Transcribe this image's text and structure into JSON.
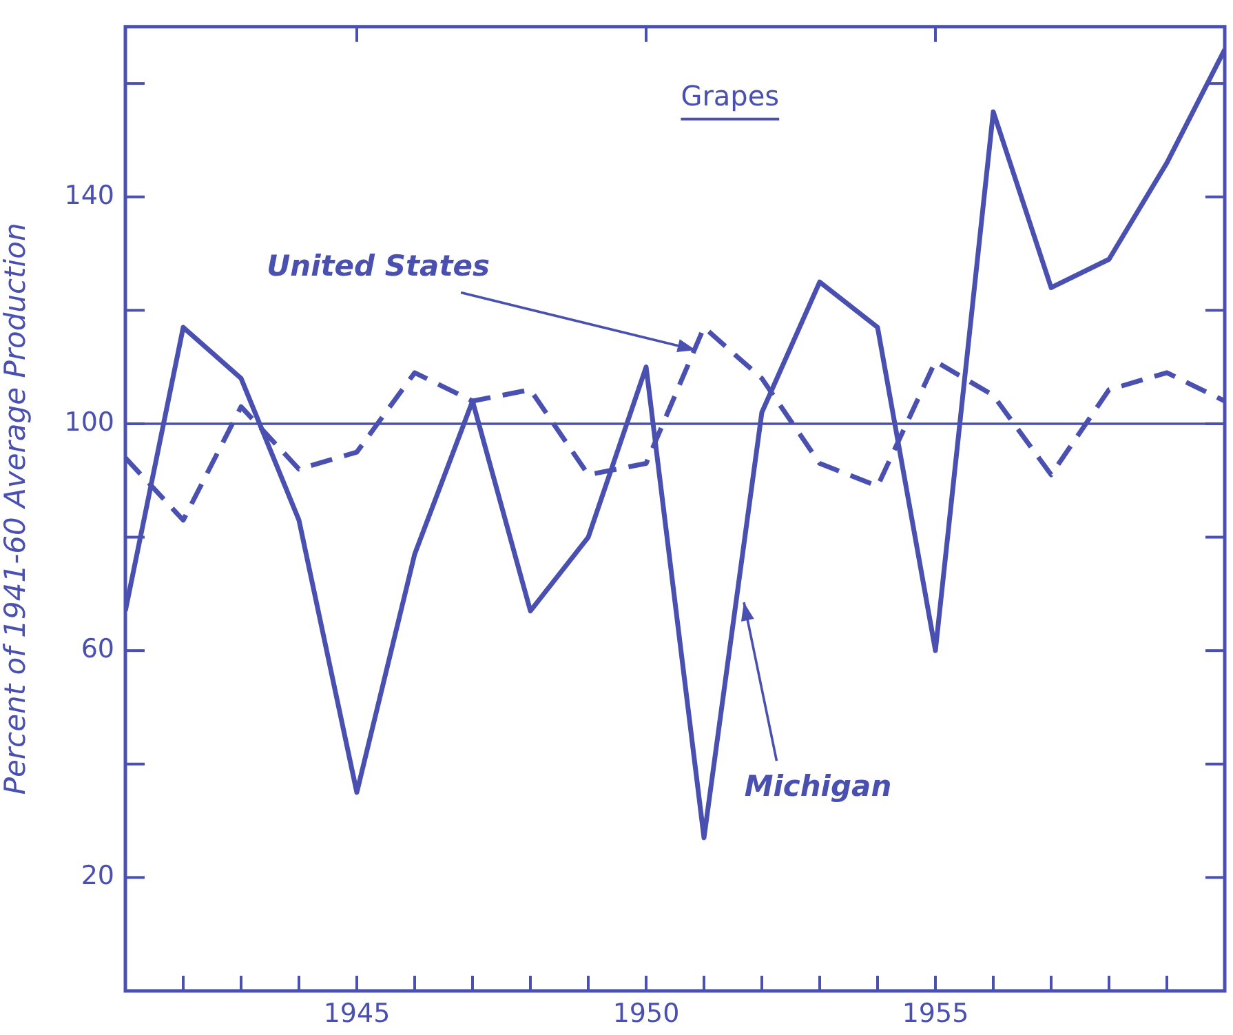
{
  "chart_data": {
    "type": "line",
    "title": "Grapes",
    "ylabel": "Percent of 1941-60 Average Production",
    "x": [
      1941,
      1942,
      1943,
      1944,
      1945,
      1946,
      1947,
      1948,
      1949,
      1950,
      1951,
      1952,
      1953,
      1954,
      1955,
      1956,
      1957,
      1958,
      1959,
      1960
    ],
    "series": [
      {
        "name": "Michigan",
        "color": "#4a50b0",
        "line_style": "solid",
        "values": [
          67,
          117,
          108,
          83,
          35,
          77,
          104,
          67,
          80,
          110,
          27,
          102,
          125,
          117,
          60,
          155,
          124,
          129,
          146,
          166
        ]
      },
      {
        "name": "United States",
        "color": "#4a50b0",
        "line_style": "dashed",
        "values": [
          94,
          83,
          103,
          92,
          95,
          109,
          104,
          106,
          91,
          93,
          117,
          108,
          93,
          89,
          111,
          105,
          91,
          106,
          109,
          104
        ]
      }
    ],
    "xlim": [
      1941,
      1960
    ],
    "xticks": [
      {
        "value": 1941,
        "label": null
      },
      {
        "value": 1942,
        "label": null
      },
      {
        "value": 1943,
        "label": null
      },
      {
        "value": 1944,
        "label": null
      },
      1945,
      {
        "value": 1946,
        "label": null
      },
      {
        "value": 1947,
        "label": null
      },
      {
        "value": 1948,
        "label": null
      },
      {
        "value": 1949,
        "label": null
      },
      1950,
      {
        "value": 1951,
        "label": null
      },
      {
        "value": 1952,
        "label": null
      },
      {
        "value": 1953,
        "label": null
      },
      {
        "value": 1954,
        "label": null
      },
      1955,
      {
        "value": 1956,
        "label": null
      },
      {
        "value": 1957,
        "label": null
      },
      {
        "value": 1958,
        "label": null
      },
      {
        "value": 1959,
        "label": null
      },
      {
        "value": 1960,
        "label": null
      }
    ],
    "ylim": [
      0,
      170
    ],
    "yticks": [
      20,
      {
        "value": 40,
        "label": null
      },
      60,
      {
        "value": 80,
        "label": null
      },
      100,
      {
        "value": 120,
        "label": null
      },
      140,
      {
        "value": 160,
        "label": null
      }
    ],
    "ref_lines": [
      {
        "axis": "y",
        "value": 100,
        "color": "#4a50b0",
        "line_style": "solid"
      }
    ],
    "grid": false,
    "legend": false,
    "marker": "none"
  }
}
